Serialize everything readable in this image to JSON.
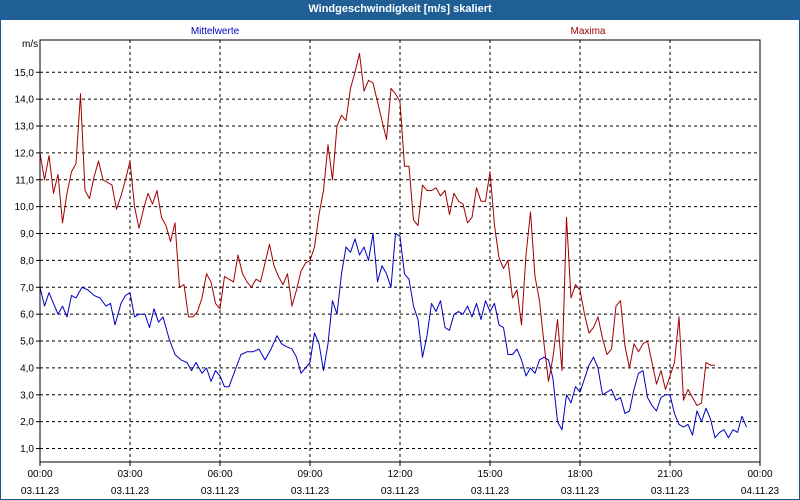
{
  "title": "Windgeschwindigkeit [m/s] skaliert",
  "unit_label": "m/s",
  "colors": {
    "titlebar": "#1f5f96",
    "mean": "#0000c0",
    "max": "#a00000",
    "grid": "#000000"
  },
  "chart_data": {
    "type": "line",
    "title": "Windgeschwindigkeit [m/s] skaliert",
    "ylabel": "m/s",
    "xlabel": "",
    "ylim": [
      0.5,
      16.2
    ],
    "xlim_hours": [
      0,
      24
    ],
    "grid": true,
    "legend_placement": "top",
    "y_ticks": [
      "1,0",
      "2,0",
      "3,0",
      "4,0",
      "5,0",
      "6,0",
      "7,0",
      "8,0",
      "9,0",
      "10,0",
      "11,0",
      "12,0",
      "13,0",
      "14,0",
      "15,0"
    ],
    "x_ticks": [
      {
        "time": "00:00",
        "date": "03.11.23"
      },
      {
        "time": "03:00",
        "date": "03.11.23"
      },
      {
        "time": "06:00",
        "date": "03.11.23"
      },
      {
        "time": "09:00",
        "date": "03.11.23"
      },
      {
        "time": "12:00",
        "date": "03.11.23"
      },
      {
        "time": "15:00",
        "date": "03.11.23"
      },
      {
        "time": "18:00",
        "date": "03.11.23"
      },
      {
        "time": "21:00",
        "date": "03.11.23"
      },
      {
        "time": "00:00",
        "date": "04.11.23"
      }
    ],
    "series": [
      {
        "name": "Mittelwerte",
        "color": "#0000c0",
        "points": [
          [
            0.0,
            7.0
          ],
          [
            0.15,
            6.3
          ],
          [
            0.3,
            6.8
          ],
          [
            0.45,
            6.4
          ],
          [
            0.6,
            6.0
          ],
          [
            0.75,
            6.3
          ],
          [
            0.9,
            5.9
          ],
          [
            1.05,
            6.7
          ],
          [
            1.2,
            6.6
          ],
          [
            1.4,
            7.0
          ],
          [
            1.6,
            6.9
          ],
          [
            1.8,
            6.7
          ],
          [
            2.0,
            6.6
          ],
          [
            2.2,
            6.3
          ],
          [
            2.35,
            6.4
          ],
          [
            2.5,
            5.6
          ],
          [
            2.7,
            6.4
          ],
          [
            2.85,
            6.7
          ],
          [
            3.0,
            6.8
          ],
          [
            3.15,
            5.9
          ],
          [
            3.3,
            6.0
          ],
          [
            3.5,
            6.0
          ],
          [
            3.65,
            5.5
          ],
          [
            3.8,
            6.2
          ],
          [
            3.95,
            5.7
          ],
          [
            4.1,
            5.9
          ],
          [
            4.3,
            5.1
          ],
          [
            4.5,
            4.5
          ],
          [
            4.7,
            4.3
          ],
          [
            4.9,
            4.2
          ],
          [
            5.05,
            3.9
          ],
          [
            5.2,
            4.2
          ],
          [
            5.4,
            3.8
          ],
          [
            5.55,
            4.0
          ],
          [
            5.7,
            3.5
          ],
          [
            5.85,
            3.9
          ],
          [
            6.0,
            3.7
          ],
          [
            6.15,
            3.3
          ],
          [
            6.3,
            3.3
          ],
          [
            6.5,
            3.9
          ],
          [
            6.7,
            4.5
          ],
          [
            6.9,
            4.6
          ],
          [
            7.1,
            4.6
          ],
          [
            7.3,
            4.7
          ],
          [
            7.5,
            4.3
          ],
          [
            7.7,
            4.7
          ],
          [
            7.9,
            5.2
          ],
          [
            8.05,
            4.9
          ],
          [
            8.2,
            4.8
          ],
          [
            8.4,
            4.7
          ],
          [
            8.55,
            4.4
          ],
          [
            8.7,
            3.8
          ],
          [
            8.85,
            4.0
          ],
          [
            9.0,
            4.2
          ],
          [
            9.15,
            5.3
          ],
          [
            9.3,
            4.9
          ],
          [
            9.45,
            3.9
          ],
          [
            9.6,
            4.9
          ],
          [
            9.75,
            6.5
          ],
          [
            9.9,
            6.0
          ],
          [
            10.05,
            7.5
          ],
          [
            10.2,
            8.5
          ],
          [
            10.35,
            8.3
          ],
          [
            10.5,
            8.8
          ],
          [
            10.65,
            8.2
          ],
          [
            10.8,
            8.5
          ],
          [
            10.95,
            8.0
          ],
          [
            11.1,
            9.0
          ],
          [
            11.25,
            7.2
          ],
          [
            11.4,
            7.8
          ],
          [
            11.55,
            7.5
          ],
          [
            11.7,
            7.0
          ],
          [
            11.85,
            9.0
          ],
          [
            12.0,
            8.9
          ],
          [
            12.15,
            7.5
          ],
          [
            12.3,
            7.3
          ],
          [
            12.45,
            6.3
          ],
          [
            12.6,
            5.8
          ],
          [
            12.75,
            4.4
          ],
          [
            12.9,
            5.2
          ],
          [
            13.05,
            6.4
          ],
          [
            13.2,
            6.1
          ],
          [
            13.35,
            6.5
          ],
          [
            13.5,
            5.5
          ],
          [
            13.65,
            5.4
          ],
          [
            13.8,
            6.0
          ],
          [
            13.95,
            6.1
          ],
          [
            14.1,
            6.0
          ],
          [
            14.25,
            6.3
          ],
          [
            14.4,
            5.9
          ],
          [
            14.55,
            6.4
          ],
          [
            14.7,
            5.8
          ],
          [
            14.85,
            6.5
          ],
          [
            15.0,
            6.1
          ],
          [
            15.15,
            6.4
          ],
          [
            15.3,
            5.6
          ],
          [
            15.45,
            5.5
          ],
          [
            15.6,
            4.5
          ],
          [
            15.75,
            4.5
          ],
          [
            15.9,
            4.7
          ],
          [
            16.05,
            4.3
          ],
          [
            16.2,
            3.7
          ],
          [
            16.35,
            4.0
          ],
          [
            16.5,
            3.8
          ],
          [
            16.65,
            4.3
          ],
          [
            16.8,
            4.4
          ],
          [
            16.95,
            4.3
          ],
          [
            17.1,
            3.6
          ],
          [
            17.25,
            2.0
          ],
          [
            17.4,
            1.7
          ],
          [
            17.55,
            3.0
          ],
          [
            17.7,
            2.7
          ],
          [
            17.85,
            3.3
          ],
          [
            18.0,
            3.1
          ],
          [
            18.15,
            3.6
          ],
          [
            18.3,
            4.1
          ],
          [
            18.45,
            4.4
          ],
          [
            18.6,
            4.0
          ],
          [
            18.75,
            3.0
          ],
          [
            18.9,
            3.1
          ],
          [
            19.05,
            3.2
          ],
          [
            19.2,
            2.8
          ],
          [
            19.35,
            2.9
          ],
          [
            19.5,
            2.3
          ],
          [
            19.65,
            2.4
          ],
          [
            19.8,
            3.2
          ],
          [
            19.95,
            3.8
          ],
          [
            20.1,
            3.9
          ],
          [
            20.25,
            2.9
          ],
          [
            20.4,
            2.6
          ],
          [
            20.55,
            2.4
          ],
          [
            20.7,
            2.9
          ],
          [
            20.85,
            3.0
          ],
          [
            21.0,
            3.0
          ],
          [
            21.15,
            2.3
          ],
          [
            21.3,
            1.9
          ],
          [
            21.45,
            1.8
          ],
          [
            21.6,
            1.9
          ],
          [
            21.75,
            1.5
          ],
          [
            21.9,
            2.4
          ],
          [
            22.05,
            2.0
          ],
          [
            22.2,
            2.5
          ],
          [
            22.35,
            2.1
          ],
          [
            22.5,
            1.4
          ],
          [
            22.65,
            1.6
          ],
          [
            22.8,
            1.7
          ],
          [
            22.95,
            1.4
          ],
          [
            23.1,
            1.7
          ],
          [
            23.25,
            1.6
          ],
          [
            23.4,
            2.2
          ],
          [
            23.55,
            1.8
          ]
        ]
      },
      {
        "name": "Maxima",
        "color": "#a00000",
        "points": [
          [
            0.0,
            12.0
          ],
          [
            0.15,
            11.0
          ],
          [
            0.3,
            11.9
          ],
          [
            0.45,
            10.5
          ],
          [
            0.6,
            11.2
          ],
          [
            0.75,
            9.4
          ],
          [
            0.9,
            10.5
          ],
          [
            1.05,
            11.3
          ],
          [
            1.2,
            11.6
          ],
          [
            1.35,
            14.2
          ],
          [
            1.5,
            10.6
          ],
          [
            1.65,
            10.3
          ],
          [
            1.8,
            11.1
          ],
          [
            1.95,
            11.7
          ],
          [
            2.1,
            11.0
          ],
          [
            2.25,
            10.9
          ],
          [
            2.4,
            10.8
          ],
          [
            2.55,
            9.9
          ],
          [
            2.7,
            10.4
          ],
          [
            2.85,
            11.0
          ],
          [
            3.0,
            11.7
          ],
          [
            3.15,
            10.0
          ],
          [
            3.3,
            9.2
          ],
          [
            3.45,
            9.9
          ],
          [
            3.6,
            10.5
          ],
          [
            3.75,
            10.1
          ],
          [
            3.9,
            10.6
          ],
          [
            4.05,
            9.6
          ],
          [
            4.2,
            9.3
          ],
          [
            4.35,
            8.7
          ],
          [
            4.5,
            9.4
          ],
          [
            4.65,
            7.0
          ],
          [
            4.8,
            7.1
          ],
          [
            4.95,
            5.9
          ],
          [
            5.1,
            5.9
          ],
          [
            5.25,
            6.1
          ],
          [
            5.4,
            6.6
          ],
          [
            5.55,
            7.5
          ],
          [
            5.7,
            7.2
          ],
          [
            5.85,
            6.4
          ],
          [
            6.0,
            6.2
          ],
          [
            6.15,
            7.4
          ],
          [
            6.3,
            7.3
          ],
          [
            6.45,
            7.2
          ],
          [
            6.6,
            8.2
          ],
          [
            6.75,
            7.5
          ],
          [
            6.9,
            7.2
          ],
          [
            7.05,
            7.0
          ],
          [
            7.2,
            7.3
          ],
          [
            7.35,
            7.2
          ],
          [
            7.5,
            7.9
          ],
          [
            7.65,
            8.6
          ],
          [
            7.8,
            7.8
          ],
          [
            7.95,
            7.4
          ],
          [
            8.1,
            7.1
          ],
          [
            8.25,
            7.5
          ],
          [
            8.4,
            6.3
          ],
          [
            8.55,
            6.9
          ],
          [
            8.7,
            7.6
          ],
          [
            8.85,
            7.9
          ],
          [
            9.0,
            8.0
          ],
          [
            9.15,
            8.5
          ],
          [
            9.3,
            9.7
          ],
          [
            9.45,
            10.6
          ],
          [
            9.6,
            12.3
          ],
          [
            9.75,
            11.0
          ],
          [
            9.9,
            13.0
          ],
          [
            10.05,
            13.4
          ],
          [
            10.2,
            13.2
          ],
          [
            10.35,
            14.4
          ],
          [
            10.5,
            15.0
          ],
          [
            10.65,
            15.7
          ],
          [
            10.8,
            14.3
          ],
          [
            10.95,
            14.7
          ],
          [
            11.1,
            14.6
          ],
          [
            11.25,
            13.9
          ],
          [
            11.4,
            13.2
          ],
          [
            11.55,
            12.5
          ],
          [
            11.7,
            14.4
          ],
          [
            11.85,
            14.2
          ],
          [
            12.0,
            13.9
          ],
          [
            12.15,
            11.5
          ],
          [
            12.3,
            11.5
          ],
          [
            12.45,
            9.5
          ],
          [
            12.6,
            9.3
          ],
          [
            12.75,
            10.8
          ],
          [
            12.9,
            10.6
          ],
          [
            13.05,
            10.6
          ],
          [
            13.2,
            10.7
          ],
          [
            13.35,
            10.4
          ],
          [
            13.5,
            10.6
          ],
          [
            13.65,
            9.7
          ],
          [
            13.8,
            10.5
          ],
          [
            13.95,
            10.2
          ],
          [
            14.1,
            10.1
          ],
          [
            14.25,
            9.4
          ],
          [
            14.4,
            9.6
          ],
          [
            14.55,
            10.7
          ],
          [
            14.7,
            10.2
          ],
          [
            14.85,
            10.2
          ],
          [
            15.0,
            11.3
          ],
          [
            15.15,
            9.3
          ],
          [
            15.3,
            8.1
          ],
          [
            15.45,
            7.7
          ],
          [
            15.6,
            8.0
          ],
          [
            15.75,
            6.6
          ],
          [
            15.9,
            6.9
          ],
          [
            16.05,
            5.6
          ],
          [
            16.2,
            8.2
          ],
          [
            16.35,
            9.8
          ],
          [
            16.5,
            7.4
          ],
          [
            16.65,
            6.5
          ],
          [
            16.8,
            4.9
          ],
          [
            16.95,
            3.5
          ],
          [
            17.1,
            4.4
          ],
          [
            17.25,
            5.8
          ],
          [
            17.4,
            3.9
          ],
          [
            17.55,
            9.6
          ],
          [
            17.7,
            6.6
          ],
          [
            17.85,
            7.1
          ],
          [
            18.0,
            6.9
          ],
          [
            18.15,
            6.0
          ],
          [
            18.3,
            5.3
          ],
          [
            18.45,
            5.5
          ],
          [
            18.6,
            5.9
          ],
          [
            18.75,
            5.1
          ],
          [
            18.9,
            4.5
          ],
          [
            19.05,
            4.7
          ],
          [
            19.2,
            6.3
          ],
          [
            19.35,
            6.5
          ],
          [
            19.5,
            4.8
          ],
          [
            19.65,
            4.0
          ],
          [
            19.8,
            4.9
          ],
          [
            19.95,
            4.6
          ],
          [
            20.1,
            4.9
          ],
          [
            20.25,
            5.0
          ],
          [
            20.4,
            4.2
          ],
          [
            20.55,
            3.4
          ],
          [
            20.7,
            3.9
          ],
          [
            20.85,
            3.2
          ],
          [
            21.0,
            3.7
          ],
          [
            21.15,
            4.2
          ],
          [
            21.3,
            5.9
          ],
          [
            21.45,
            2.8
          ],
          [
            21.6,
            3.2
          ],
          [
            21.75,
            2.9
          ],
          [
            21.9,
            2.6
          ],
          [
            22.05,
            2.7
          ],
          [
            22.2,
            4.2
          ],
          [
            22.35,
            4.1
          ],
          [
            22.5,
            4.1
          ]
        ]
      }
    ]
  }
}
